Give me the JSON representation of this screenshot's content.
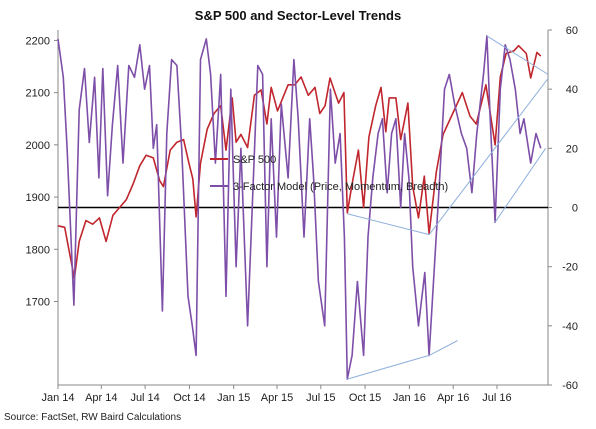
{
  "chart_data": {
    "type": "line",
    "title": "S&P 500 and Sector-Level Trends",
    "source": "Source: FactSet, RW Baird Calculations",
    "colors": {
      "sp500": "#c0262d",
      "model": "#7d4fa8",
      "trendline": "#8fb0dc",
      "zero_line": "#000000"
    },
    "x_axis": {
      "range": [
        "2014-01-01",
        "2016-10-15"
      ],
      "tick_labels": [
        "Jan 14",
        "Apr 14",
        "Jul 14",
        "Oct 14",
        "Jan 15",
        "Apr 15",
        "Jul 15",
        "Oct 15",
        "Jan 16",
        "Apr 16",
        "Jul 16"
      ],
      "tick_dates": [
        "2014-01-01",
        "2014-04-01",
        "2014-07-01",
        "2014-10-01",
        "2015-01-01",
        "2015-04-01",
        "2015-07-01",
        "2015-10-01",
        "2016-01-01",
        "2016-04-01",
        "2016-07-01"
      ]
    },
    "y_left": {
      "range": [
        1540,
        2220
      ],
      "tick_labels": [
        "1700",
        "1800",
        "1900",
        "2000",
        "2100",
        "2200"
      ],
      "tick_values": [
        1700,
        1800,
        1900,
        2000,
        2100,
        2200
      ]
    },
    "y_right": {
      "range": [
        -60,
        60
      ],
      "tick_labels": [
        "-60",
        "-40",
        "-20",
        "0",
        "20",
        "40",
        "60"
      ],
      "tick_values": [
        -60,
        -40,
        -20,
        0,
        20,
        40,
        60
      ]
    },
    "legend": {
      "placement": "center",
      "entries": [
        "S&P 500",
        "3-Factor Model (Price, Momentum, Breadth)"
      ]
    },
    "series": [
      {
        "name": "S&P 500",
        "axis": "left",
        "points": [
          [
            "2014-01-01",
            1845
          ],
          [
            "2014-01-15",
            1842
          ],
          [
            "2014-01-25",
            1792
          ],
          [
            "2014-02-04",
            1745
          ],
          [
            "2014-02-14",
            1815
          ],
          [
            "2014-02-28",
            1855
          ],
          [
            "2014-03-14",
            1848
          ],
          [
            "2014-03-28",
            1860
          ],
          [
            "2014-04-11",
            1815
          ],
          [
            "2014-04-25",
            1865
          ],
          [
            "2014-05-09",
            1880
          ],
          [
            "2014-05-23",
            1895
          ],
          [
            "2014-06-06",
            1925
          ],
          [
            "2014-06-20",
            1960
          ],
          [
            "2014-07-03",
            1980
          ],
          [
            "2014-07-18",
            1975
          ],
          [
            "2014-07-31",
            1932
          ],
          [
            "2014-08-08",
            1920
          ],
          [
            "2014-08-22",
            1990
          ],
          [
            "2014-09-05",
            2005
          ],
          [
            "2014-09-19",
            2010
          ],
          [
            "2014-09-30",
            1965
          ],
          [
            "2014-10-08",
            1935
          ],
          [
            "2014-10-15",
            1862
          ],
          [
            "2014-10-24",
            1965
          ],
          [
            "2014-11-07",
            2030
          ],
          [
            "2014-11-21",
            2060
          ],
          [
            "2014-12-05",
            2075
          ],
          [
            "2014-12-16",
            1990
          ],
          [
            "2014-12-29",
            2090
          ],
          [
            "2015-01-06",
            2005
          ],
          [
            "2015-01-16",
            2020
          ],
          [
            "2015-01-30",
            1995
          ],
          [
            "2015-02-13",
            2095
          ],
          [
            "2015-02-27",
            2105
          ],
          [
            "2015-03-11",
            2040
          ],
          [
            "2015-03-20",
            2110
          ],
          [
            "2015-04-02",
            2065
          ],
          [
            "2015-04-24",
            2115
          ],
          [
            "2015-05-08",
            2115
          ],
          [
            "2015-05-21",
            2130
          ],
          [
            "2015-06-05",
            2095
          ],
          [
            "2015-06-19",
            2110
          ],
          [
            "2015-06-29",
            2060
          ],
          [
            "2015-07-10",
            2075
          ],
          [
            "2015-07-20",
            2128
          ],
          [
            "2015-08-07",
            2080
          ],
          [
            "2015-08-18",
            2100
          ],
          [
            "2015-08-25",
            1870
          ],
          [
            "2015-09-04",
            1925
          ],
          [
            "2015-09-17",
            1990
          ],
          [
            "2015-09-28",
            1880
          ],
          [
            "2015-10-09",
            2015
          ],
          [
            "2015-10-23",
            2075
          ],
          [
            "2015-11-03",
            2110
          ],
          [
            "2015-11-13",
            2025
          ],
          [
            "2015-11-20",
            2090
          ],
          [
            "2015-12-04",
            2090
          ],
          [
            "2015-12-14",
            2010
          ],
          [
            "2015-12-29",
            2080
          ],
          [
            "2016-01-08",
            1920
          ],
          [
            "2016-01-20",
            1860
          ],
          [
            "2016-02-01",
            1940
          ],
          [
            "2016-02-11",
            1830
          ],
          [
            "2016-02-26",
            1948
          ],
          [
            "2016-03-11",
            2020
          ],
          [
            "2016-03-31",
            2060
          ],
          [
            "2016-04-20",
            2100
          ],
          [
            "2016-05-06",
            2055
          ],
          [
            "2016-05-19",
            2040
          ],
          [
            "2016-06-08",
            2115
          ],
          [
            "2016-06-27",
            2000
          ],
          [
            "2016-07-08",
            2130
          ],
          [
            "2016-07-20",
            2175
          ],
          [
            "2016-08-05",
            2180
          ],
          [
            "2016-08-15",
            2190
          ],
          [
            "2016-08-31",
            2175
          ],
          [
            "2016-09-09",
            2128
          ],
          [
            "2016-09-22",
            2177
          ],
          [
            "2016-09-30",
            2170
          ]
        ]
      },
      {
        "name": "3-Factor Model (Price, Momentum, Breadth)",
        "axis": "right",
        "points": [
          [
            "2014-01-01",
            57
          ],
          [
            "2014-01-12",
            44
          ],
          [
            "2014-01-20",
            20
          ],
          [
            "2014-02-03",
            -33
          ],
          [
            "2014-02-14",
            33
          ],
          [
            "2014-02-25",
            47
          ],
          [
            "2014-03-07",
            22
          ],
          [
            "2014-03-18",
            44
          ],
          [
            "2014-03-27",
            10
          ],
          [
            "2014-04-04",
            47
          ],
          [
            "2014-04-14",
            4
          ],
          [
            "2014-04-24",
            28
          ],
          [
            "2014-05-05",
            48
          ],
          [
            "2014-05-16",
            15
          ],
          [
            "2014-05-28",
            48
          ],
          [
            "2014-06-09",
            44
          ],
          [
            "2014-06-20",
            55
          ],
          [
            "2014-06-30",
            40
          ],
          [
            "2014-07-10",
            48
          ],
          [
            "2014-07-18",
            20
          ],
          [
            "2014-07-25",
            28
          ],
          [
            "2014-08-06",
            -35
          ],
          [
            "2014-08-15",
            25
          ],
          [
            "2014-08-25",
            50
          ],
          [
            "2014-09-05",
            48
          ],
          [
            "2014-09-15",
            20
          ],
          [
            "2014-09-28",
            -30
          ],
          [
            "2014-10-07",
            -40
          ],
          [
            "2014-10-15",
            -50
          ],
          [
            "2014-10-24",
            50
          ],
          [
            "2014-11-05",
            57
          ],
          [
            "2014-11-14",
            45
          ],
          [
            "2014-11-24",
            15
          ],
          [
            "2014-12-05",
            45
          ],
          [
            "2014-12-16",
            -30
          ],
          [
            "2014-12-26",
            40
          ],
          [
            "2015-01-06",
            -20
          ],
          [
            "2015-01-16",
            20
          ],
          [
            "2015-01-30",
            -40
          ],
          [
            "2015-02-11",
            10
          ],
          [
            "2015-02-20",
            48
          ],
          [
            "2015-03-02",
            45
          ],
          [
            "2015-03-11",
            -20
          ],
          [
            "2015-03-20",
            30
          ],
          [
            "2015-03-31",
            -10
          ],
          [
            "2015-04-10",
            35
          ],
          [
            "2015-04-24",
            10
          ],
          [
            "2015-05-06",
            50
          ],
          [
            "2015-05-15",
            30
          ],
          [
            "2015-05-27",
            -10
          ],
          [
            "2015-06-08",
            30
          ],
          [
            "2015-06-16",
            10
          ],
          [
            "2015-06-26",
            -25
          ],
          [
            "2015-07-09",
            -40
          ],
          [
            "2015-07-21",
            40
          ],
          [
            "2015-07-31",
            15
          ],
          [
            "2015-08-10",
            25
          ],
          [
            "2015-08-19",
            -10
          ],
          [
            "2015-08-25",
            -58
          ],
          [
            "2015-09-04",
            -50
          ],
          [
            "2015-09-15",
            -25
          ],
          [
            "2015-09-28",
            -50
          ],
          [
            "2015-10-07",
            -10
          ],
          [
            "2015-10-17",
            10
          ],
          [
            "2015-10-28",
            25
          ],
          [
            "2015-11-06",
            30
          ],
          [
            "2015-11-16",
            5
          ],
          [
            "2015-11-25",
            25
          ],
          [
            "2015-12-04",
            30
          ],
          [
            "2015-12-14",
            0
          ],
          [
            "2015-12-22",
            25
          ],
          [
            "2015-12-31",
            10
          ],
          [
            "2016-01-08",
            -20
          ],
          [
            "2016-01-20",
            -40
          ],
          [
            "2016-02-02",
            -22
          ],
          [
            "2016-02-11",
            -50
          ],
          [
            "2016-02-22",
            -20
          ],
          [
            "2016-03-04",
            10
          ],
          [
            "2016-03-14",
            40
          ],
          [
            "2016-03-24",
            45
          ],
          [
            "2016-04-04",
            35
          ],
          [
            "2016-04-18",
            25
          ],
          [
            "2016-04-29",
            20
          ],
          [
            "2016-05-10",
            5
          ],
          [
            "2016-05-20",
            25
          ],
          [
            "2016-06-03",
            45
          ],
          [
            "2016-06-10",
            58
          ],
          [
            "2016-06-17",
            30
          ],
          [
            "2016-06-27",
            -5
          ],
          [
            "2016-07-08",
            40
          ],
          [
            "2016-07-18",
            55
          ],
          [
            "2016-07-28",
            50
          ],
          [
            "2016-08-08",
            40
          ],
          [
            "2016-08-18",
            25
          ],
          [
            "2016-08-26",
            30
          ],
          [
            "2016-09-09",
            15
          ],
          [
            "2016-09-20",
            25
          ],
          [
            "2016-09-30",
            20
          ]
        ]
      }
    ],
    "trendlines": [
      {
        "axis": "left",
        "points": [
          [
            "2015-08-25",
            1868
          ],
          [
            "2016-02-11",
            1828
          ]
        ]
      },
      {
        "axis": "left",
        "points": [
          [
            "2016-02-11",
            1828
          ],
          [
            "2016-10-15",
            2127
          ]
        ]
      },
      {
        "axis": "right",
        "points": [
          [
            "2015-08-25",
            -58
          ],
          [
            "2016-02-11",
            -50
          ]
        ]
      },
      {
        "axis": "right",
        "points": [
          [
            "2016-02-11",
            -50
          ],
          [
            "2016-04-10",
            -45
          ]
        ]
      },
      {
        "axis": "right",
        "points": [
          [
            "2016-06-27",
            -5
          ],
          [
            "2016-10-10",
            20
          ]
        ]
      },
      {
        "axis": "right",
        "points": [
          [
            "2016-06-10",
            58
          ],
          [
            "2016-10-15",
            45
          ]
        ]
      }
    ]
  }
}
